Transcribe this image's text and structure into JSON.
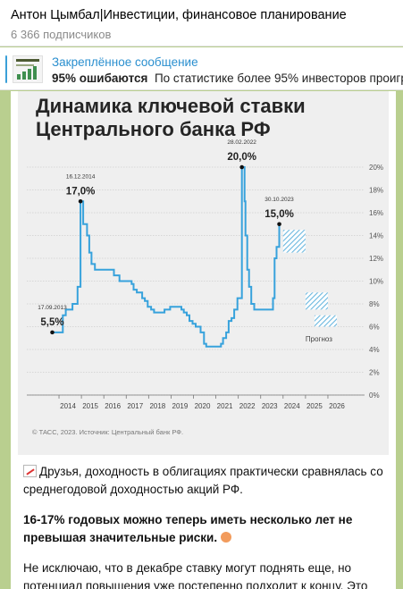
{
  "header": {
    "title": "Антон Цымбал|Инвестиции, финансовое планирование",
    "subscribers": "6 366 подписчиков"
  },
  "pinned": {
    "label": "Закреплённое сообщение",
    "bold": "95% ошибаются",
    "text": "По статистике более 95% инвесторов проигры"
  },
  "chart": {
    "title_line1": "Динамика ключевой ставки",
    "title_line2": "Центрального банка РФ",
    "source": "© ТАСС, 2023. Источник: Центральный банк РФ.",
    "forecast_label": "Прогноз"
  },
  "chart_data": {
    "type": "line",
    "title": "Динамика ключевой ставки Центрального банка РФ",
    "x_ticks": [
      "2014",
      "2015",
      "2016",
      "2017",
      "2018",
      "2019",
      "2020",
      "2021",
      "2022",
      "2023",
      "2024",
      "2025",
      "2026"
    ],
    "y_ticks": [
      "0%",
      "2%",
      "4%",
      "6%",
      "8%",
      "10%",
      "12%",
      "14%",
      "16%",
      "18%",
      "20%"
    ],
    "ylim": [
      0,
      20
    ],
    "xlim": [
      2013.6,
      2026.4
    ],
    "series": [
      {
        "points": [
          [
            2013.7,
            5.5
          ],
          [
            2014.15,
            5.5
          ],
          [
            2014.17,
            7.0
          ],
          [
            2014.3,
            7.5
          ],
          [
            2014.6,
            8.0
          ],
          [
            2014.83,
            9.5
          ],
          [
            2014.96,
            17.0
          ],
          [
            2015.08,
            15.0
          ],
          [
            2015.25,
            14.0
          ],
          [
            2015.35,
            12.5
          ],
          [
            2015.45,
            11.5
          ],
          [
            2015.6,
            11.0
          ],
          [
            2016.45,
            10.5
          ],
          [
            2016.7,
            10.0
          ],
          [
            2017.24,
            9.75
          ],
          [
            2017.33,
            9.25
          ],
          [
            2017.47,
            9.0
          ],
          [
            2017.71,
            8.5
          ],
          [
            2017.83,
            8.25
          ],
          [
            2017.96,
            7.75
          ],
          [
            2018.11,
            7.5
          ],
          [
            2018.24,
            7.25
          ],
          [
            2018.71,
            7.5
          ],
          [
            2018.96,
            7.75
          ],
          [
            2019.46,
            7.5
          ],
          [
            2019.57,
            7.25
          ],
          [
            2019.7,
            7.0
          ],
          [
            2019.82,
            6.5
          ],
          [
            2019.96,
            6.25
          ],
          [
            2020.1,
            6.0
          ],
          [
            2020.32,
            5.5
          ],
          [
            2020.47,
            4.5
          ],
          [
            2020.57,
            4.25
          ],
          [
            2021.23,
            4.5
          ],
          [
            2021.32,
            5.0
          ],
          [
            2021.46,
            5.5
          ],
          [
            2021.57,
            6.5
          ],
          [
            2021.7,
            6.75
          ],
          [
            2021.82,
            7.5
          ],
          [
            2021.96,
            8.5
          ],
          [
            2022.16,
            9.5
          ],
          [
            2022.16,
            20.0
          ],
          [
            2022.28,
            17.0
          ],
          [
            2022.32,
            14.0
          ],
          [
            2022.4,
            11.0
          ],
          [
            2022.48,
            9.5
          ],
          [
            2022.58,
            8.0
          ],
          [
            2022.71,
            7.5
          ],
          [
            2023.55,
            8.5
          ],
          [
            2023.62,
            12.0
          ],
          [
            2023.71,
            13.0
          ],
          [
            2023.83,
            15.0
          ]
        ]
      }
    ],
    "forecast_ranges": [
      {
        "x": [
          2024.0,
          2025.0
        ],
        "y": [
          12.5,
          14.5
        ]
      },
      {
        "x": [
          2025.0,
          2026.0
        ],
        "y": [
          7.5,
          9.0
        ]
      },
      {
        "x": [
          2025.4,
          2026.4
        ],
        "y": [
          6.0,
          7.0
        ]
      }
    ],
    "annotations": [
      {
        "date": "17.09.2013",
        "value": "5,5%",
        "x": 2013.7,
        "y": 5.5
      },
      {
        "date": "16.12.2014",
        "value": "17,0%",
        "x": 2014.96,
        "y": 17.0
      },
      {
        "date": "28.02.2022",
        "value": "20,0%",
        "x": 2022.16,
        "y": 20.0
      },
      {
        "date": "30.10.2023",
        "value": "15,0%",
        "x": 2023.83,
        "y": 15.0
      }
    ],
    "colors": {
      "line": "#37a2dc",
      "forecast": "#6ab7df",
      "grid": "#cfcfcf",
      "text": "#333333"
    }
  },
  "message": {
    "p1": "Друзья, доходность в облигациях практически сравнялась со среднегодовой доходностью акций РФ.",
    "p2": "16-17% годовых можно теперь иметь несколько лет не превышая значительные риски.",
    "p3": "Не исключаю, что в декабре ставку могут поднять еще, но потенциал повышения уже постепенно подходит к концу. Это"
  }
}
